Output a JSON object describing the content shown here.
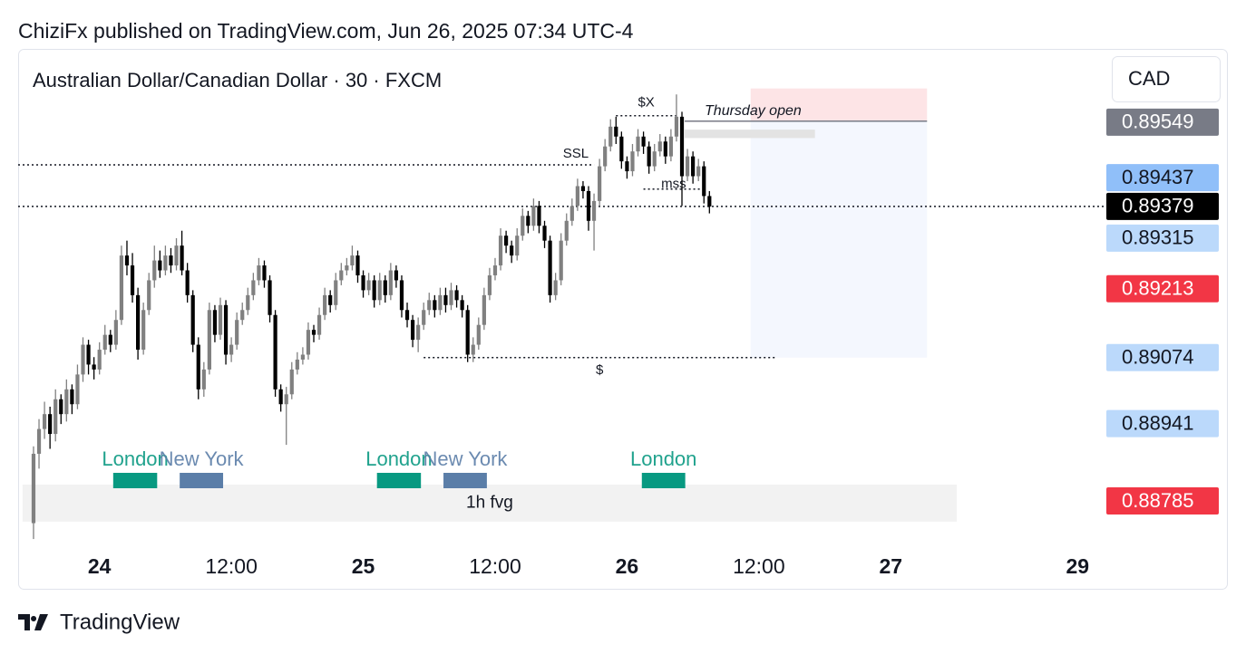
{
  "header": {
    "published": "ChiziFx published on TradingView.com, Jun 26, 2025 07:34 UTC-4",
    "symbol": "Australian Dollar/Canadian Dollar · 30 · FXCM",
    "currency": "CAD"
  },
  "footer": {
    "brand": "TradingView"
  },
  "chart_data": {
    "type": "candlestick",
    "up_color": "#808080",
    "down_color": "#000000",
    "xlim": [
      -2.8,
      194.9
    ],
    "ylim": [
      0.88699,
      0.89695
    ],
    "xticks": [
      {
        "value": 12,
        "label": "24"
      },
      {
        "value": 36,
        "label": "12:00"
      },
      {
        "value": 60,
        "label": "25"
      },
      {
        "value": 84,
        "label": "12:00"
      },
      {
        "value": 108,
        "label": "26"
      },
      {
        "value": 132,
        "label": "12:00"
      },
      {
        "value": 156,
        "label": "27"
      },
      {
        "value": 190,
        "label": "29"
      }
    ],
    "price_labels": [
      {
        "value": 0.89549,
        "color": "#787b86",
        "text_color": "#ffffff"
      },
      {
        "value": 0.89437,
        "color": "#90bff9",
        "text_color": "#131722"
      },
      {
        "value": 0.89379,
        "color": "#000000",
        "text_color": "#ffffff"
      },
      {
        "value": 0.89315,
        "color": "#bbd9fb",
        "text_color": "#131722"
      },
      {
        "value": 0.89213,
        "color": "#f23645",
        "text_color": "#ffffff"
      },
      {
        "value": 0.89074,
        "color": "#bbd9fb",
        "text_color": "#131722"
      },
      {
        "value": 0.88941,
        "color": "#bbd9fb",
        "text_color": "#131722"
      },
      {
        "value": 0.88785,
        "color": "#f23645",
        "text_color": "#ffffff"
      }
    ],
    "boxes": [
      {
        "from": 130.5,
        "to": 162.6,
        "top": 0.89617,
        "bottom": 0.89551,
        "color": "#fde4e6"
      },
      {
        "from": 130.5,
        "to": 162.6,
        "top": 0.89551,
        "bottom": 0.89074,
        "color": "#f4f7fe"
      },
      {
        "from": 118.5,
        "to": 142.2,
        "top": 0.89534,
        "bottom": 0.89517,
        "color": "#e3e3e3"
      },
      {
        "from": -2,
        "to": 168,
        "top": 0.88818,
        "bottom": 0.88743,
        "color": "#f2f2f2",
        "label": "1h fvg"
      }
    ],
    "lines": [
      {
        "label": "SSL",
        "price": 0.89463,
        "from": -2.8,
        "to": 102
      },
      {
        "label": "$",
        "price": 0.89074,
        "from": 71,
        "to": 135
      },
      {
        "label": "$X",
        "price": 0.89562,
        "from": 106,
        "to": 117
      },
      {
        "label": "mss",
        "price": 0.89414,
        "from": 111,
        "to": 122
      },
      {
        "label": "Thursday open",
        "price": 0.89551,
        "from": 118.5,
        "to": 162.6
      }
    ],
    "sessions": [
      {
        "name": "London",
        "from": 14.5,
        "to": 22.5,
        "color": "#089981"
      },
      {
        "name": "New York",
        "from": 26.6,
        "to": 34.5,
        "color": "#5b7ea8"
      },
      {
        "name": "London",
        "from": 62.5,
        "to": 70.5,
        "color": "#089981"
      },
      {
        "name": "New York",
        "from": 74.6,
        "to": 82.5,
        "color": "#5b7ea8"
      },
      {
        "name": "London",
        "from": 110.7,
        "to": 118.6,
        "color": "#089981"
      }
    ],
    "candles": [
      [
        0.8874,
        0.88895,
        0.88708,
        0.8888
      ],
      [
        0.8888,
        0.8895,
        0.8885,
        0.8893
      ],
      [
        0.8893,
        0.88985,
        0.8891,
        0.8896
      ],
      [
        0.8896,
        0.88975,
        0.8889,
        0.8892
      ],
      [
        0.8892,
        0.8901,
        0.88905,
        0.8899
      ],
      [
        0.8899,
        0.89,
        0.8894,
        0.8896
      ],
      [
        0.8896,
        0.8903,
        0.88945,
        0.8901
      ],
      [
        0.8901,
        0.8902,
        0.8896,
        0.8898
      ],
      [
        0.8898,
        0.8906,
        0.8897,
        0.8904
      ],
      [
        0.8904,
        0.89115,
        0.89025,
        0.891
      ],
      [
        0.891,
        0.8911,
        0.8904,
        0.8906
      ],
      [
        0.8906,
        0.89075,
        0.8903,
        0.8905
      ],
      [
        0.8905,
        0.89105,
        0.8904,
        0.8909
      ],
      [
        0.8909,
        0.8914,
        0.8908,
        0.8912
      ],
      [
        0.8912,
        0.8913,
        0.89085,
        0.891
      ],
      [
        0.891,
        0.8917,
        0.8909,
        0.8915
      ],
      [
        0.8915,
        0.893,
        0.8914,
        0.8928
      ],
      [
        0.8928,
        0.8931,
        0.8924,
        0.8926
      ],
      [
        0.8926,
        0.89285,
        0.89185,
        0.892
      ],
      [
        0.892,
        0.89215,
        0.8907,
        0.8909
      ],
      [
        0.8909,
        0.89185,
        0.8908,
        0.8917
      ],
      [
        0.8917,
        0.89245,
        0.8916,
        0.8923
      ],
      [
        0.8923,
        0.893,
        0.89215,
        0.8927
      ],
      [
        0.8927,
        0.8929,
        0.89235,
        0.8925
      ],
      [
        0.8925,
        0.893,
        0.8924,
        0.8928
      ],
      [
        0.8928,
        0.89295,
        0.89245,
        0.8926
      ],
      [
        0.8926,
        0.89315,
        0.8925,
        0.893
      ],
      [
        0.893,
        0.8933,
        0.8924,
        0.8925
      ],
      [
        0.8925,
        0.89265,
        0.89185,
        0.892
      ],
      [
        0.892,
        0.8921,
        0.89085,
        0.891
      ],
      [
        0.891,
        0.89115,
        0.8899,
        0.8901
      ],
      [
        0.8901,
        0.89065,
        0.88995,
        0.8905
      ],
      [
        0.8905,
        0.89185,
        0.8904,
        0.8917
      ],
      [
        0.8917,
        0.8918,
        0.89105,
        0.8912
      ],
      [
        0.8912,
        0.89195,
        0.8911,
        0.8918
      ],
      [
        0.8918,
        0.8919,
        0.8906,
        0.8908
      ],
      [
        0.8908,
        0.89115,
        0.89065,
        0.891
      ],
      [
        0.891,
        0.89165,
        0.8909,
        0.8915
      ],
      [
        0.8915,
        0.89185,
        0.8914,
        0.8917
      ],
      [
        0.8917,
        0.89215,
        0.8916,
        0.892
      ],
      [
        0.892,
        0.89245,
        0.8919,
        0.8923
      ],
      [
        0.8923,
        0.89275,
        0.8922,
        0.8926
      ],
      [
        0.8926,
        0.8927,
        0.89215,
        0.8923
      ],
      [
        0.8923,
        0.8924,
        0.89145,
        0.8916
      ],
      [
        0.8916,
        0.8917,
        0.88995,
        0.8901
      ],
      [
        0.8901,
        0.8902,
        0.88965,
        0.8898
      ],
      [
        0.8898,
        0.89015,
        0.88898,
        0.89
      ],
      [
        0.89,
        0.89065,
        0.8899,
        0.8905
      ],
      [
        0.8905,
        0.89085,
        0.8904,
        0.8907
      ],
      [
        0.8907,
        0.89095,
        0.8906,
        0.8908
      ],
      [
        0.8908,
        0.89145,
        0.8907,
        0.8913
      ],
      [
        0.8913,
        0.8914,
        0.89105,
        0.8912
      ],
      [
        0.8912,
        0.89175,
        0.8911,
        0.8916
      ],
      [
        0.8916,
        0.89215,
        0.8915,
        0.892
      ],
      [
        0.892,
        0.8921,
        0.89165,
        0.8918
      ],
      [
        0.8918,
        0.89245,
        0.8917,
        0.8923
      ],
      [
        0.8923,
        0.89265,
        0.8922,
        0.8925
      ],
      [
        0.8925,
        0.89275,
        0.8924,
        0.8926
      ],
      [
        0.8926,
        0.893,
        0.8925,
        0.8928
      ],
      [
        0.8928,
        0.8929,
        0.89225,
        0.8924
      ],
      [
        0.8924,
        0.8925,
        0.89195,
        0.8921
      ],
      [
        0.8921,
        0.89245,
        0.892,
        0.8923
      ],
      [
        0.8923,
        0.8924,
        0.89175,
        0.8919
      ],
      [
        0.8919,
        0.89245,
        0.8918,
        0.8923
      ],
      [
        0.8923,
        0.8924,
        0.89185,
        0.892
      ],
      [
        0.892,
        0.89265,
        0.8919,
        0.8925
      ],
      [
        0.8925,
        0.8926,
        0.89215,
        0.8923
      ],
      [
        0.8923,
        0.8924,
        0.89155,
        0.8917
      ],
      [
        0.8917,
        0.89185,
        0.89135,
        0.8915
      ],
      [
        0.8915,
        0.8916,
        0.89095,
        0.8911
      ],
      [
        0.8911,
        0.89155,
        0.89085,
        0.8914
      ],
      [
        0.8914,
        0.89185,
        0.8913,
        0.8917
      ],
      [
        0.8917,
        0.89205,
        0.8916,
        0.8919
      ],
      [
        0.8919,
        0.892,
        0.89155,
        0.8917
      ],
      [
        0.8917,
        0.89215,
        0.8916,
        0.892
      ],
      [
        0.892,
        0.89215,
        0.89165,
        0.8918
      ],
      [
        0.8918,
        0.89225,
        0.8917,
        0.8921
      ],
      [
        0.8921,
        0.8922,
        0.89175,
        0.8919
      ],
      [
        0.8919,
        0.892,
        0.89155,
        0.8917
      ],
      [
        0.8917,
        0.8918,
        0.89065,
        0.8908
      ],
      [
        0.8908,
        0.89115,
        0.89065,
        0.891
      ],
      [
        0.891,
        0.89155,
        0.8909,
        0.8914
      ],
      [
        0.8914,
        0.89215,
        0.8913,
        0.892
      ],
      [
        0.892,
        0.89255,
        0.8919,
        0.8924
      ],
      [
        0.8924,
        0.89275,
        0.8923,
        0.8926
      ],
      [
        0.8926,
        0.89335,
        0.8925,
        0.8932
      ],
      [
        0.8932,
        0.8933,
        0.89285,
        0.893
      ],
      [
        0.893,
        0.8931,
        0.89265,
        0.8928
      ],
      [
        0.8928,
        0.89335,
        0.8927,
        0.8932
      ],
      [
        0.8932,
        0.89375,
        0.8931,
        0.8936
      ],
      [
        0.8936,
        0.8937,
        0.89325,
        0.8934
      ],
      [
        0.8934,
        0.89395,
        0.8933,
        0.8938
      ],
      [
        0.8938,
        0.8939,
        0.89325,
        0.8934
      ],
      [
        0.8934,
        0.8935,
        0.89295,
        0.8931
      ],
      [
        0.8931,
        0.8932,
        0.89185,
        0.892
      ],
      [
        0.892,
        0.89245,
        0.8919,
        0.8923
      ],
      [
        0.8923,
        0.89325,
        0.8922,
        0.8931
      ],
      [
        0.8931,
        0.89365,
        0.893,
        0.8935
      ],
      [
        0.8935,
        0.89395,
        0.8934,
        0.8938
      ],
      [
        0.8938,
        0.89435,
        0.8937,
        0.8942
      ],
      [
        0.8942,
        0.8943,
        0.89395,
        0.8941
      ],
      [
        0.8941,
        0.8942,
        0.8933,
        0.8935
      ],
      [
        0.8935,
        0.89405,
        0.8929,
        0.8939
      ],
      [
        0.8939,
        0.89475,
        0.8938,
        0.8946
      ],
      [
        0.8946,
        0.89515,
        0.8945,
        0.895
      ],
      [
        0.895,
        0.89555,
        0.8949,
        0.8954
      ],
      [
        0.8954,
        0.8956,
        0.89505,
        0.8952
      ],
      [
        0.8952,
        0.8953,
        0.89455,
        0.8947
      ],
      [
        0.8947,
        0.8948,
        0.89435,
        0.8945
      ],
      [
        0.8945,
        0.89505,
        0.8944,
        0.8949
      ],
      [
        0.8949,
        0.89535,
        0.8948,
        0.8952
      ],
      [
        0.8952,
        0.8953,
        0.89485,
        0.895
      ],
      [
        0.895,
        0.8951,
        0.89445,
        0.8946
      ],
      [
        0.8946,
        0.89505,
        0.8945,
        0.8949
      ],
      [
        0.8949,
        0.89525,
        0.8948,
        0.8951
      ],
      [
        0.8951,
        0.8952,
        0.89465,
        0.8948
      ],
      [
        0.8948,
        0.89535,
        0.8947,
        0.8952
      ],
      [
        0.8952,
        0.89605,
        0.8951,
        0.8956
      ],
      [
        0.8956,
        0.8957,
        0.8938,
        0.8944
      ],
      [
        0.8944,
        0.89495,
        0.8943,
        0.8948
      ],
      [
        0.8948,
        0.8949,
        0.89425,
        0.8944
      ],
      [
        0.8944,
        0.89475,
        0.8943,
        0.8946
      ],
      [
        0.8946,
        0.8947,
        0.89385,
        0.894
      ],
      [
        0.894,
        0.8941,
        0.89365,
        0.89379
      ]
    ]
  }
}
